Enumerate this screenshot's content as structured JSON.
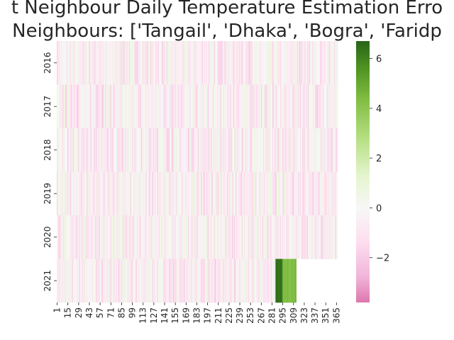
{
  "chart_data": {
    "type": "heatmap",
    "title_lines": [
      "t Neighbour Daily Temperature Estimation Erro",
      "Neighbours: ['Tangail', 'Dhaka', 'Bogra', 'Faridp"
    ],
    "xlabel": "",
    "ylabel": "",
    "x_tick_labels": [
      "1",
      "15",
      "29",
      "43",
      "57",
      "71",
      "85",
      "99",
      "113",
      "127",
      "141",
      "155",
      "169",
      "183",
      "197",
      "211",
      "225",
      "239",
      "253",
      "267",
      "281",
      "295",
      "309",
      "323",
      "337",
      "351",
      "365"
    ],
    "y_tick_labels": [
      "2016",
      "2017",
      "2018",
      "2019",
      "2020",
      "2021"
    ],
    "days": 366,
    "value_range": [
      -3.8,
      6.7
    ],
    "colorbar_ticks": [
      {
        "value": 6,
        "label": "6"
      },
      {
        "value": 4,
        "label": "4"
      },
      {
        "value": 2,
        "label": "2"
      },
      {
        "value": 0,
        "label": "0"
      },
      {
        "value": -2,
        "label": "−2"
      }
    ],
    "colormap": "PiYG",
    "missing_data": {
      "year": "2021",
      "from_day": 313,
      "to_day": 366
    },
    "notable_cells": [
      {
        "year": "2021",
        "from_day": 286,
        "to_day": 294,
        "value": 6.3
      },
      {
        "year": "2021",
        "from_day": 295,
        "to_day": 312,
        "value": 4.4
      }
    ],
    "typical_error_range": [
      -2.0,
      0.8
    ]
  }
}
